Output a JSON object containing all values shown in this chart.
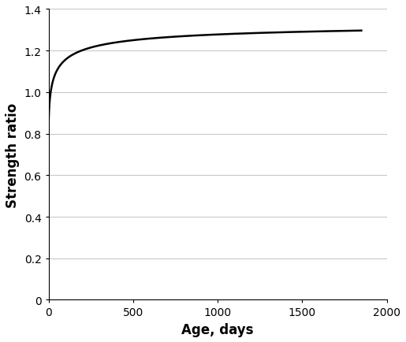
{
  "title": "",
  "xlabel": "Age, days",
  "ylabel": "Strength ratio",
  "xlim": [
    0,
    2000
  ],
  "ylim": [
    0,
    1.4
  ],
  "xticks": [
    0,
    500,
    1000,
    1500,
    2000
  ],
  "yticks": [
    0,
    0.2,
    0.4,
    0.6,
    0.8,
    1.0,
    1.2,
    1.4
  ],
  "line_color": "#000000",
  "line_width": 1.8,
  "background_color": "#ffffff",
  "grid_color": "#c8c8c8",
  "xlabel_fontsize": 12,
  "ylabel_fontsize": 12,
  "tick_fontsize": 10,
  "curve_params": {
    "a": 0.0785,
    "b": 0.435,
    "x_start": 1.0,
    "x_end": 1850
  }
}
